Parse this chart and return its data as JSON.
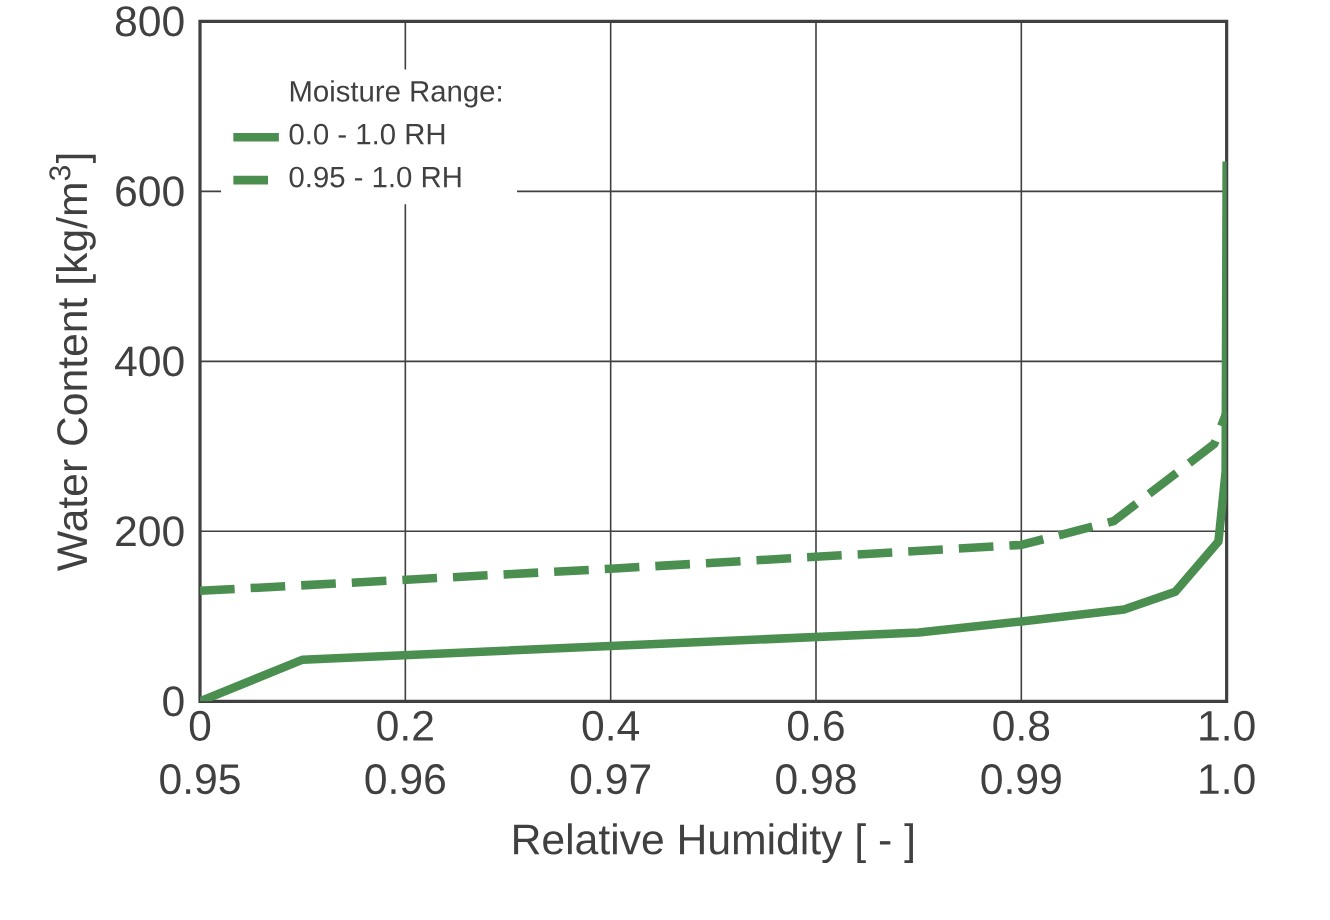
{
  "chart_data": {
    "type": "line",
    "xlabel": "Relative Humidity [ - ]",
    "ylabel": "Water Content [kg/m$^{3}$]",
    "legend_title": "Moisture Range:",
    "xlim": [
      0,
      1
    ],
    "xticks": [
      0,
      0.2,
      0.4,
      0.6,
      0.8,
      {
        "value": 1,
        "label": "1.0"
      }
    ],
    "x2lim": [
      0.95,
      1
    ],
    "x2ticks": [
      0.95,
      0.96,
      0.97,
      0.98,
      0.99,
      {
        "value": 1,
        "label": "1.0"
      }
    ],
    "ylim": [
      0,
      800
    ],
    "yticks": [
      0,
      200,
      400,
      600,
      800
    ],
    "grid": true,
    "legend": "top left",
    "series": [
      {
        "name": "0.0  -  1.0 RH",
        "color": "#4a8f4f",
        "line_style": "solid",
        "x": [
          0,
          0.1,
          0.7,
          0.8,
          0.9,
          0.95,
          0.992,
          0.999,
          1.0
        ],
        "values": [
          0,
          49,
          81,
          94,
          108,
          129,
          188,
          270,
          635
        ]
      },
      {
        "name": "0.95 - 1.0 RH",
        "color": "#4a8f4f",
        "line_style": "dashed",
        "axis": "x2",
        "x": [
          0.95,
          0.97,
          0.99,
          0.9945,
          0.9994,
          1.0
        ],
        "values": [
          130,
          156,
          184,
          212,
          303,
          340
        ]
      }
    ]
  }
}
